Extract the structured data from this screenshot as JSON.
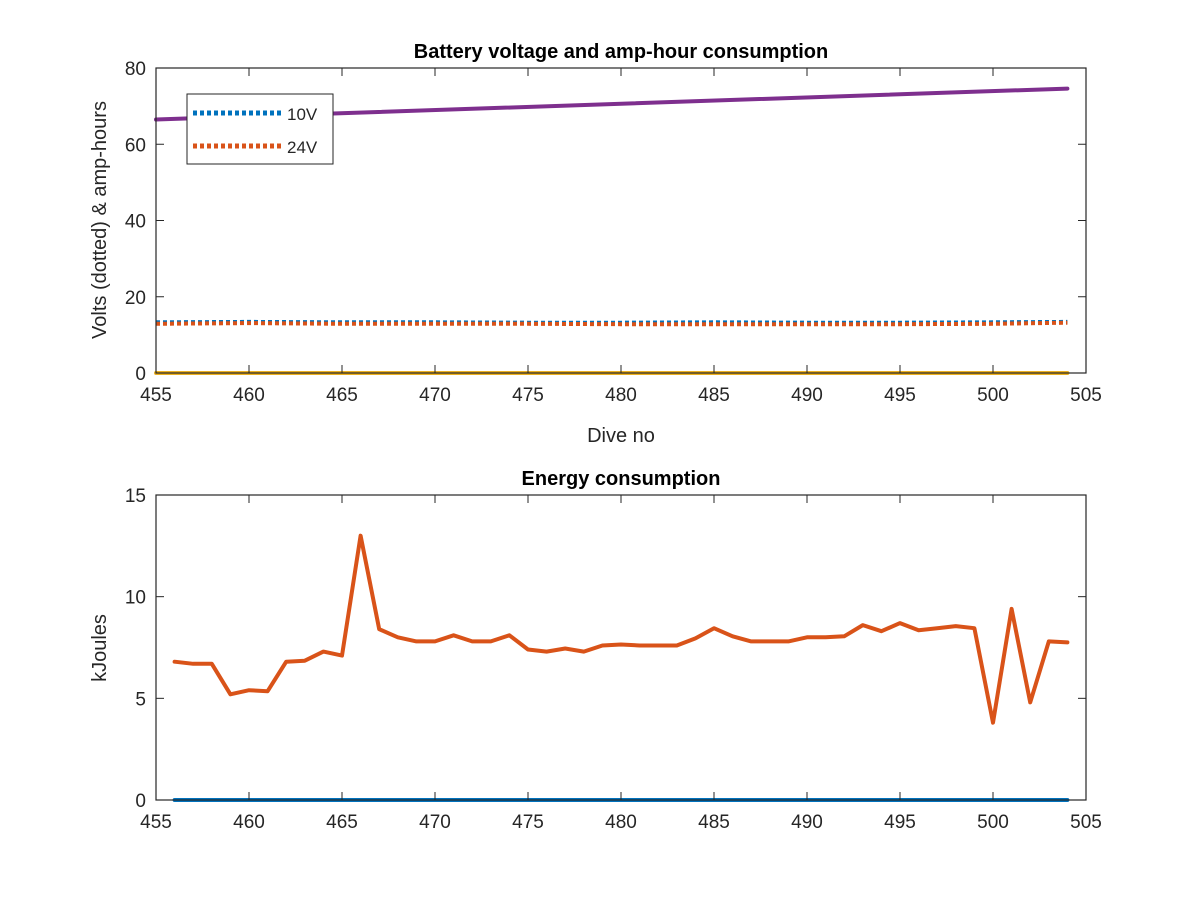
{
  "chart_data": [
    {
      "type": "line",
      "title": "Battery voltage and amp-hour consumption",
      "xlabel": "Dive no",
      "ylabel": "Volts (dotted) & amp-hours",
      "xlim": [
        455,
        505
      ],
      "ylim": [
        0,
        80
      ],
      "xticks": [
        455,
        460,
        465,
        470,
        475,
        480,
        485,
        490,
        495,
        500,
        505
      ],
      "yticks": [
        0,
        20,
        40,
        60,
        80
      ],
      "grid": false,
      "legend_position": "top-left",
      "series": [
        {
          "name": "10V",
          "color": "#0072BD",
          "style": "dotted",
          "in_legend": true,
          "x": [
            455,
            460,
            465,
            470,
            475,
            480,
            485,
            490,
            495,
            500,
            504
          ],
          "y": [
            13.3,
            13.4,
            13.3,
            13.3,
            13.2,
            13.2,
            13.3,
            13.2,
            13.2,
            13.3,
            13.4
          ]
        },
        {
          "name": "24V",
          "color": "#D95319",
          "style": "dotted",
          "in_legend": true,
          "x": [
            455,
            460,
            465,
            470,
            475,
            480,
            485,
            490,
            495,
            500,
            504
          ],
          "y": [
            12.9,
            13.1,
            12.9,
            12.9,
            12.9,
            12.8,
            12.8,
            12.8,
            12.8,
            12.9,
            13.2
          ]
        },
        {
          "color": "#EDB120",
          "style": "solid",
          "in_legend": false,
          "x": [
            455,
            504
          ],
          "y": [
            0,
            0
          ]
        },
        {
          "color": "#7E2F8E",
          "style": "solid",
          "in_legend": false,
          "x": [
            455,
            504
          ],
          "y": [
            66.5,
            74.6
          ]
        }
      ]
    },
    {
      "type": "line",
      "title": "Energy consumption",
      "xlabel": "",
      "ylabel": "kJoules",
      "xlim": [
        455,
        505
      ],
      "ylim": [
        0,
        15
      ],
      "xticks": [
        455,
        460,
        465,
        470,
        475,
        480,
        485,
        490,
        495,
        500,
        505
      ],
      "yticks": [
        0,
        5,
        10,
        15
      ],
      "grid": false,
      "series": [
        {
          "color": "#0072BD",
          "style": "solid",
          "x": [
            456,
            504
          ],
          "y": [
            0,
            0
          ]
        },
        {
          "color": "#D95319",
          "style": "solid",
          "x": [
            456,
            457,
            458,
            459,
            460,
            461,
            462,
            463,
            464,
            465,
            466,
            467,
            468,
            469,
            470,
            471,
            472,
            473,
            474,
            475,
            476,
            477,
            478,
            479,
            480,
            481,
            482,
            483,
            484,
            485,
            486,
            487,
            488,
            489,
            490,
            491,
            492,
            493,
            494,
            495,
            496,
            497,
            498,
            499,
            500,
            501,
            502,
            503,
            504
          ],
          "y": [
            6.8,
            6.7,
            6.7,
            5.2,
            5.4,
            5.35,
            6.8,
            6.85,
            7.3,
            7.1,
            13.0,
            8.4,
            8.0,
            7.8,
            7.8,
            8.1,
            7.8,
            7.8,
            8.1,
            7.4,
            7.3,
            7.45,
            7.3,
            7.6,
            7.65,
            7.6,
            7.6,
            7.6,
            7.95,
            8.45,
            8.05,
            7.8,
            7.8,
            7.8,
            8.0,
            8.0,
            8.05,
            8.6,
            8.3,
            8.7,
            8.35,
            8.45,
            8.55,
            8.45,
            3.8,
            9.4,
            4.8,
            7.8,
            7.75
          ]
        }
      ]
    }
  ]
}
